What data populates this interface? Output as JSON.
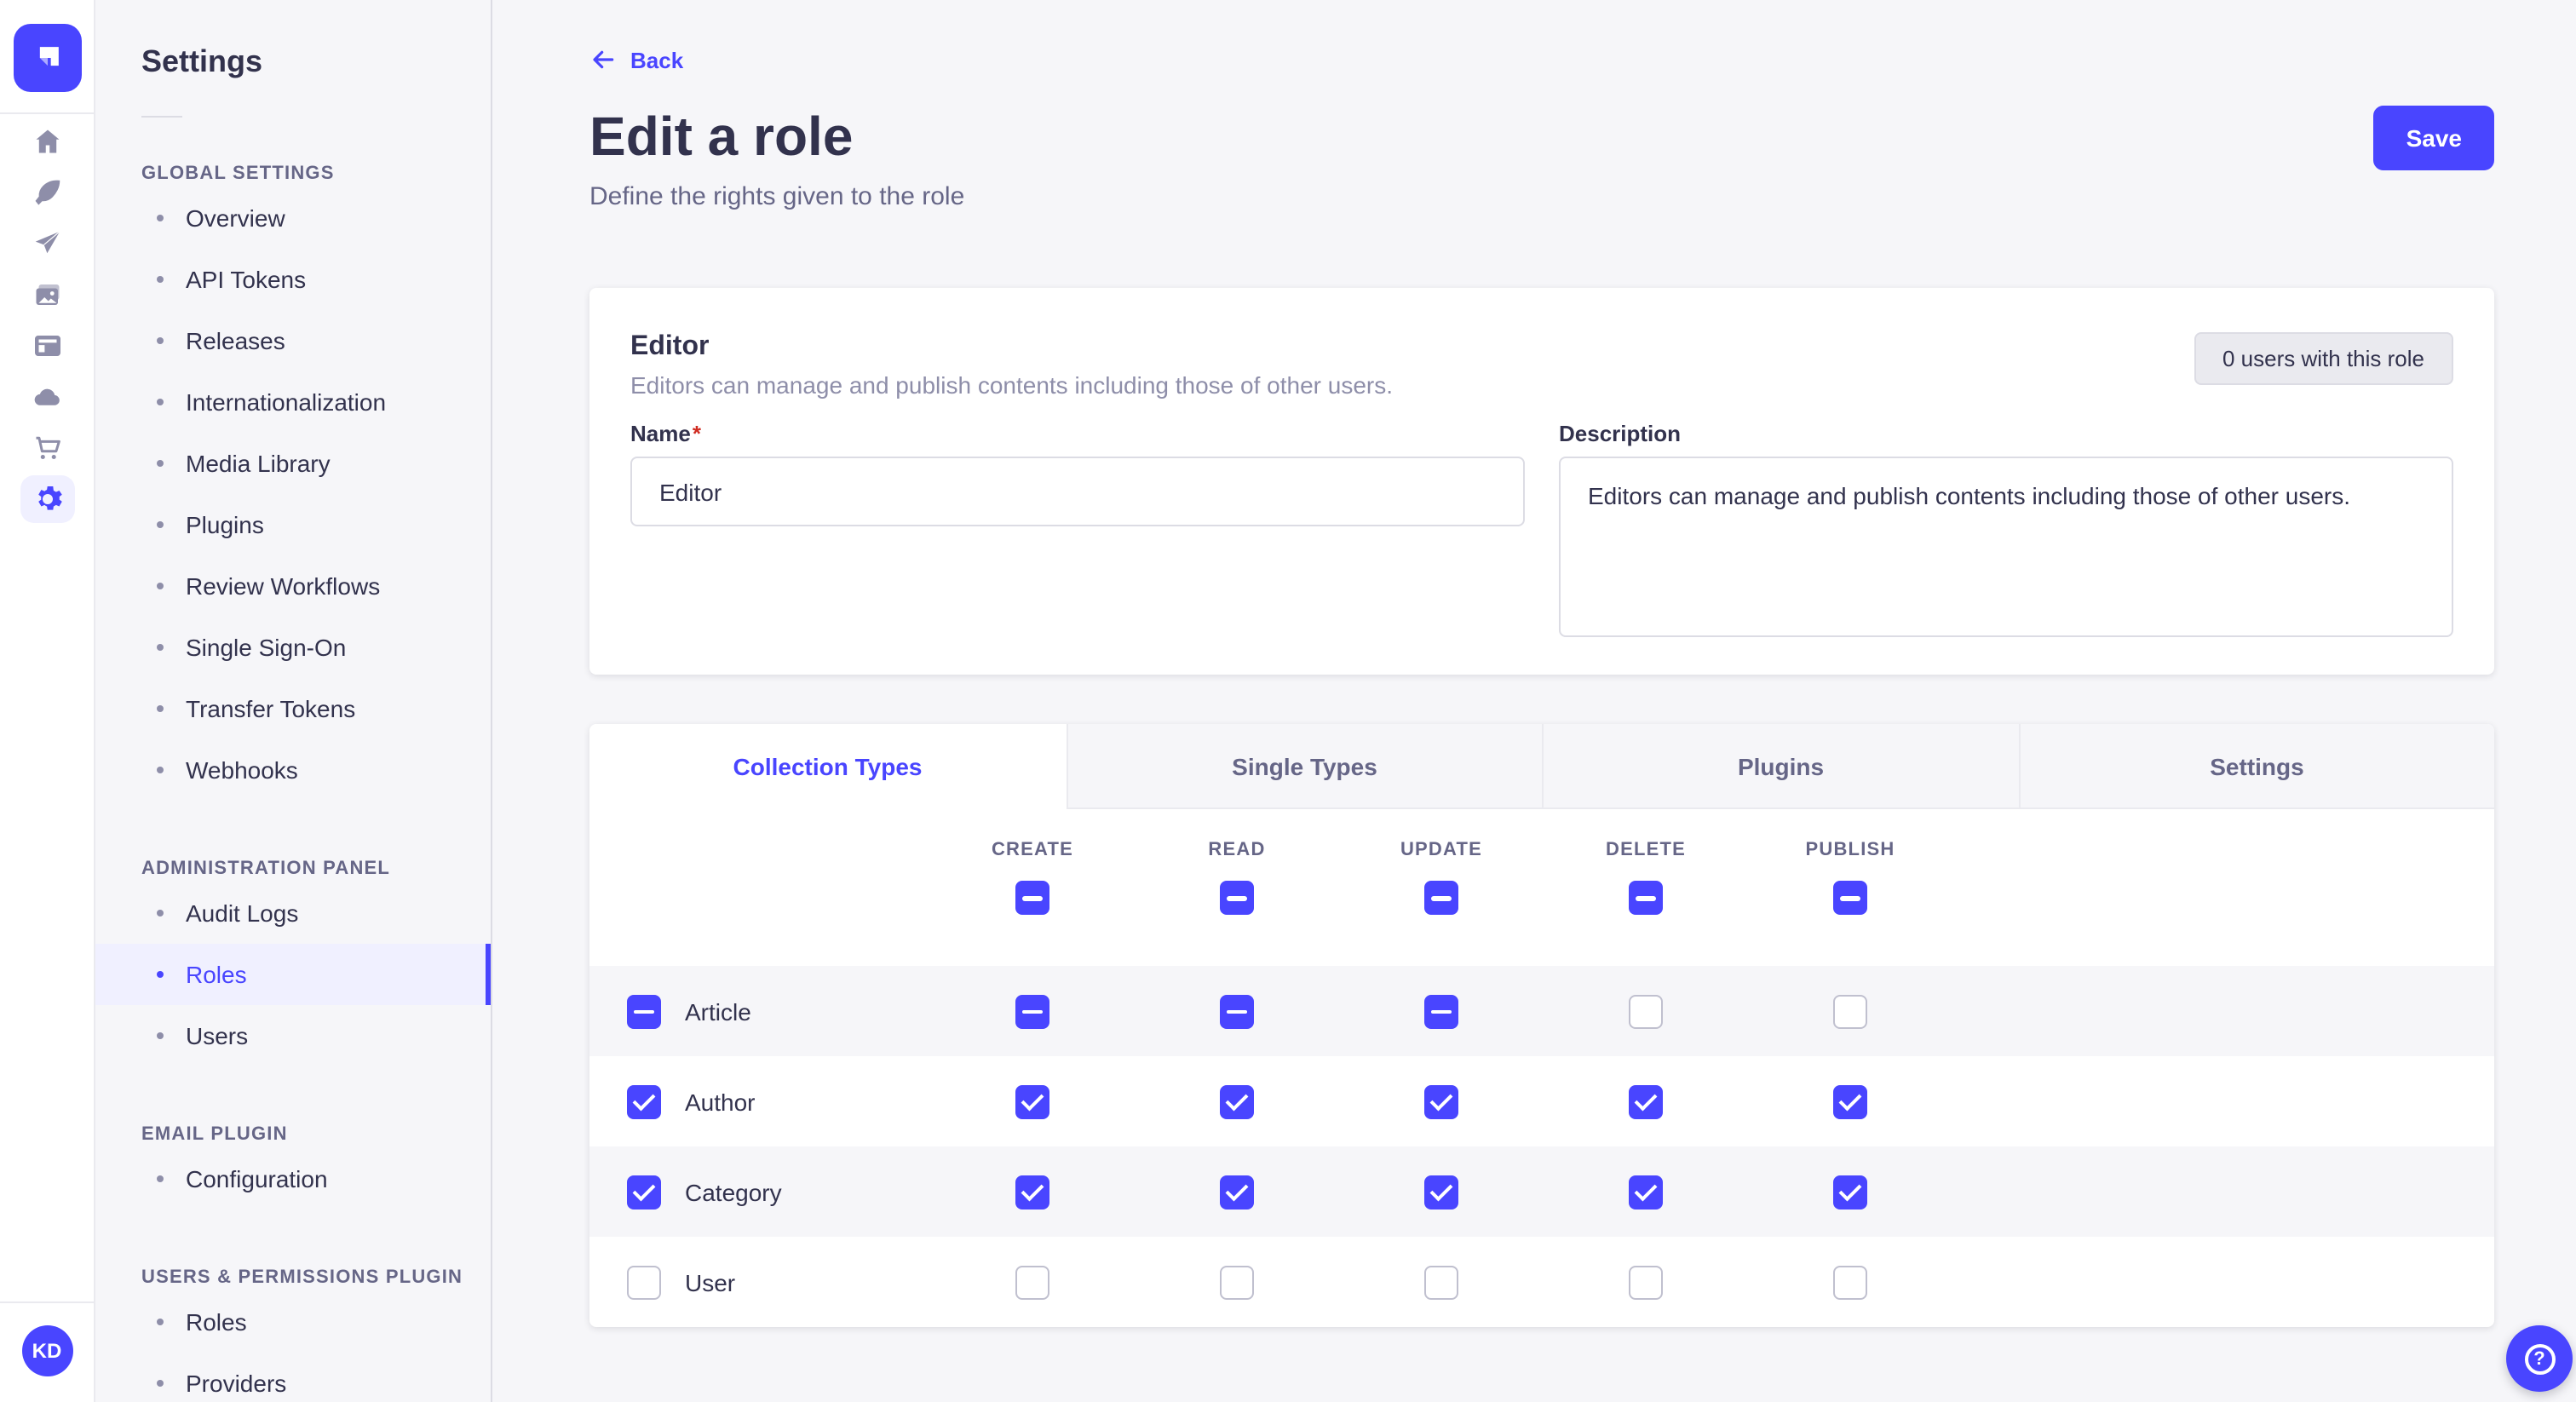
{
  "app": {
    "brand_color": "#4945ff",
    "page_bg": "#f6f6f9",
    "active_item_bg": "#f0f0ff"
  },
  "rail": {
    "logo_icon": "strapi-logo",
    "icons": [
      "home",
      "feather",
      "paper-plane",
      "media-images",
      "layout",
      "cloud",
      "cart",
      "gear"
    ],
    "active_icon": "gear",
    "avatar_initials": "KD"
  },
  "sidebar": {
    "title": "Settings",
    "sections": [
      {
        "label": "GLOBAL SETTINGS",
        "items": [
          "Overview",
          "API Tokens",
          "Releases",
          "Internationalization",
          "Media Library",
          "Plugins",
          "Review Workflows",
          "Single Sign-On",
          "Transfer Tokens",
          "Webhooks"
        ],
        "active": -1
      },
      {
        "label": "ADMINISTRATION PANEL",
        "items": [
          "Audit Logs",
          "Roles",
          "Users"
        ],
        "active": 1
      },
      {
        "label": "EMAIL PLUGIN",
        "items": [
          "Configuration"
        ],
        "active": -1
      },
      {
        "label": "USERS & PERMISSIONS PLUGIN",
        "items": [
          "Roles",
          "Providers"
        ],
        "active": -1
      }
    ]
  },
  "header": {
    "back_label": "Back",
    "title": "Edit a role",
    "subtitle": "Define the rights given to the role",
    "save_label": "Save"
  },
  "role_card": {
    "title": "Editor",
    "subtitle": "Editors can manage and publish contents including those of other users.",
    "users_badge": "0 users with this role",
    "name_label": "Name",
    "required_mark": "*",
    "name_value": "Editor",
    "description_label": "Description",
    "description_value": "Editors can manage and publish contents including those of other users."
  },
  "permissions": {
    "tabs": [
      {
        "label": "Collection Types",
        "active": true
      },
      {
        "label": "Single Types",
        "active": false
      },
      {
        "label": "Plugins",
        "active": false
      },
      {
        "label": "Settings",
        "active": false
      }
    ],
    "columns": [
      "CREATE",
      "READ",
      "UPDATE",
      "DELETE",
      "PUBLISH"
    ],
    "header_states": [
      "indeterminate",
      "indeterminate",
      "indeterminate",
      "indeterminate",
      "indeterminate"
    ],
    "rows": [
      {
        "label": "Article",
        "self": "indeterminate",
        "states": [
          "indeterminate",
          "indeterminate",
          "indeterminate",
          "empty",
          "empty"
        ]
      },
      {
        "label": "Author",
        "self": "checked",
        "states": [
          "checked",
          "checked",
          "checked",
          "checked",
          "checked"
        ]
      },
      {
        "label": "Category",
        "self": "checked",
        "states": [
          "checked",
          "checked",
          "checked",
          "checked",
          "checked"
        ]
      },
      {
        "label": "User",
        "self": "empty",
        "states": [
          "empty",
          "empty",
          "empty",
          "empty",
          "empty"
        ]
      }
    ]
  },
  "help": {
    "icon_glyph": "?"
  }
}
